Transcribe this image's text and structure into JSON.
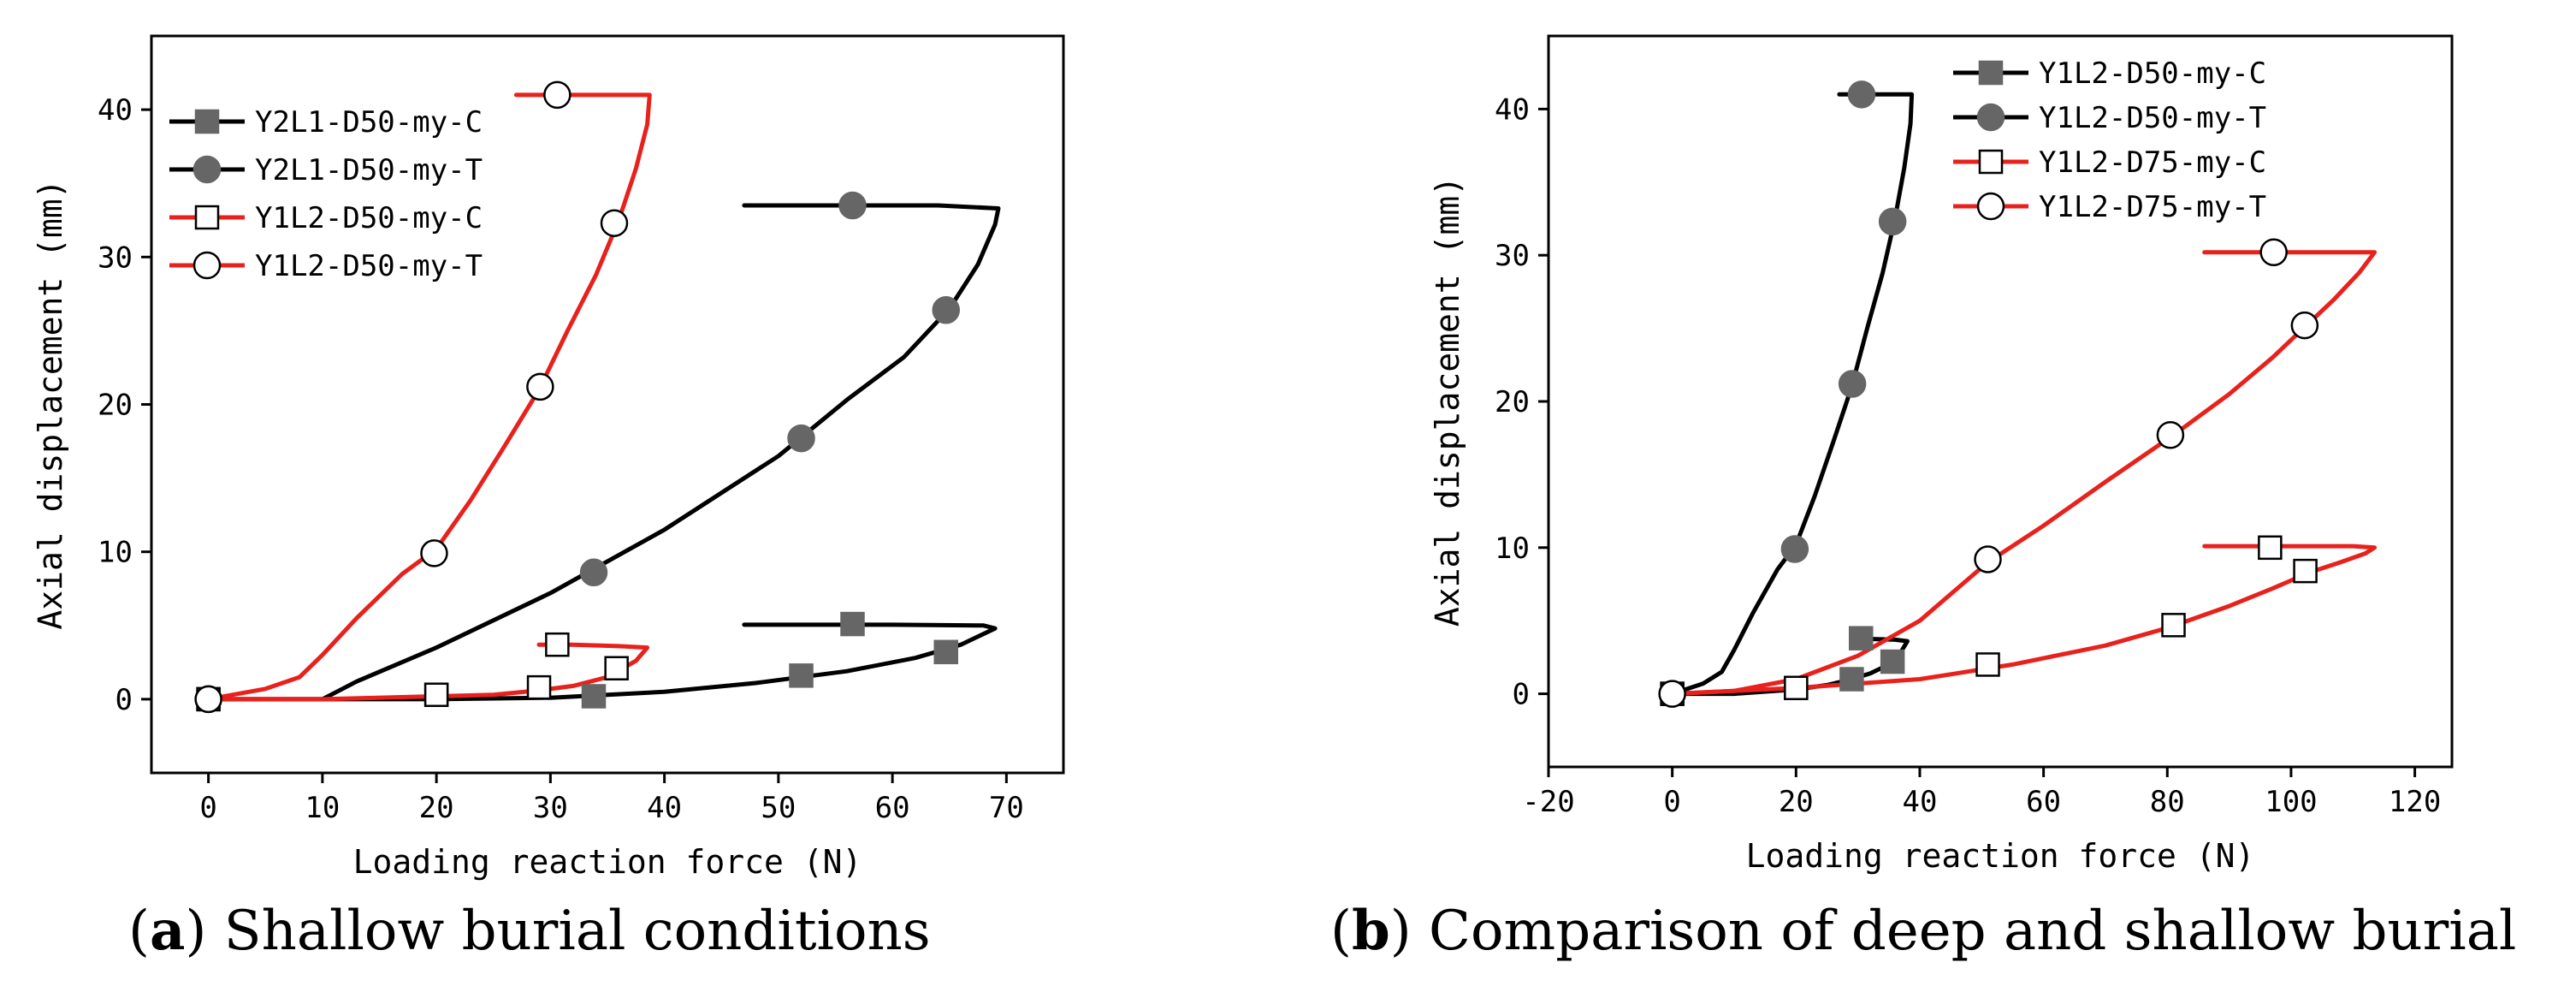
{
  "chart_data": [
    {
      "type": "line",
      "panel": "a",
      "xlabel": "Loading reaction force (N)",
      "ylabel": "Axial displacement (mm)",
      "xlim": [
        -5,
        75
      ],
      "ylim": [
        -5,
        45
      ],
      "xticks": [
        0,
        10,
        20,
        30,
        40,
        50,
        60,
        70
      ],
      "yticks": [
        0,
        10,
        20,
        30,
        40
      ],
      "legend_position": "top-left",
      "caption_label": "a",
      "caption_text": "Shallow burial conditions",
      "series": [
        {
          "name": "Y2L1-D50-my-C",
          "color": "#000000",
          "marker": "square-filled",
          "x": [
            0,
            10,
            20,
            30,
            40,
            48,
            56,
            62,
            66,
            69,
            68,
            60,
            50,
            47
          ],
          "y": [
            0,
            0,
            0,
            0.1,
            0.5,
            1.1,
            1.9,
            2.8,
            3.7,
            4.8,
            5.0,
            5.05,
            5.05,
            5.05
          ],
          "marker_x": [
            0,
            20,
            33.8,
            52,
            64.7,
            56.5
          ],
          "marker_y": [
            0,
            0.3,
            0.2,
            1.6,
            3.2,
            5.1
          ]
        },
        {
          "name": "Y2L1-D50-my-T",
          "color": "#000000",
          "marker": "circle-filled",
          "x": [
            0,
            10,
            13,
            20,
            30,
            40,
            50,
            56,
            61,
            65,
            67.5,
            69,
            69.3,
            64,
            55,
            47
          ],
          "y": [
            0,
            0,
            1.2,
            3.5,
            7.2,
            11.5,
            16.5,
            20.3,
            23.2,
            26.5,
            29.5,
            32.2,
            33.3,
            33.5,
            33.5,
            33.5
          ],
          "marker_x": [
            0,
            33.8,
            52,
            64.7,
            56.5
          ],
          "marker_y": [
            0,
            8.6,
            17.7,
            26.4,
            33.5
          ]
        },
        {
          "name": "Y1L2-D50-my-C",
          "color": "#e8211c",
          "marker": "square-open",
          "x": [
            0,
            10,
            20,
            25,
            29,
            32,
            35,
            37.5,
            38.5,
            36,
            32,
            29
          ],
          "y": [
            0,
            0,
            0.2,
            0.3,
            0.6,
            0.9,
            1.5,
            2.6,
            3.5,
            3.6,
            3.7,
            3.7
          ],
          "marker_x": [
            0,
            20,
            29,
            35.8,
            30.6
          ],
          "marker_y": [
            0,
            0.3,
            0.8,
            2.1,
            3.7
          ]
        },
        {
          "name": "Y1L2-D50-my-T",
          "color": "#e8211c",
          "marker": "circle-open",
          "x": [
            0,
            5,
            8,
            10,
            13,
            17,
            20,
            23,
            26,
            29,
            31.5,
            34,
            36,
            37.5,
            38.5,
            38.7,
            36,
            33,
            27
          ],
          "y": [
            0,
            0.7,
            1.5,
            3.0,
            5.5,
            8.5,
            10.2,
            13.5,
            17.2,
            21.0,
            25.0,
            28.8,
            32.5,
            36.0,
            39.0,
            41.0,
            41.0,
            41.0,
            41.0
          ],
          "marker_x": [
            0,
            19.8,
            29.1,
            35.6,
            30.6
          ],
          "marker_y": [
            0,
            9.9,
            21.2,
            32.3,
            41.0
          ]
        }
      ]
    },
    {
      "type": "line",
      "panel": "b",
      "xlabel": "Loading reaction force (N)",
      "ylabel": "Axial displacement (mm)",
      "xlim": [
        -20,
        126
      ],
      "ylim": [
        -5,
        45
      ],
      "xticks": [
        -20,
        0,
        20,
        40,
        60,
        80,
        100,
        120
      ],
      "yticks": [
        0,
        10,
        20,
        30,
        40
      ],
      "legend_position": "top-right",
      "caption_label": "b",
      "caption_text": "Comparison of deep and shallow burial",
      "series": [
        {
          "name": "Y1L2-D50-my-C",
          "color": "#000000",
          "marker": "square-filled",
          "x": [
            0,
            10,
            20,
            25,
            29,
            32,
            35,
            37,
            38,
            36,
            32,
            29
          ],
          "y": [
            0,
            0,
            0.3,
            0.6,
            1.0,
            1.4,
            2.0,
            2.9,
            3.6,
            3.7,
            3.75,
            3.75
          ],
          "marker_x": [
            0,
            20,
            29,
            35.6,
            30.5
          ],
          "marker_y": [
            0,
            0.4,
            1.0,
            2.2,
            3.8
          ]
        },
        {
          "name": "Y1L2-D50-my-T",
          "color": "#000000",
          "marker": "circle-filled",
          "x": [
            0,
            5,
            8,
            10,
            13,
            17,
            20,
            23,
            26,
            29,
            31.5,
            34,
            36,
            37.5,
            38.5,
            38.7,
            36,
            33,
            27
          ],
          "y": [
            0,
            0.7,
            1.5,
            3.0,
            5.5,
            8.5,
            10.2,
            13.5,
            17.2,
            21.0,
            25.0,
            28.8,
            32.5,
            36.0,
            39.0,
            41.0,
            41.0,
            41.0,
            41.0
          ],
          "marker_x": [
            0,
            19.8,
            29.1,
            35.6,
            30.6
          ],
          "marker_y": [
            0,
            9.9,
            21.2,
            32.3,
            41.0
          ]
        },
        {
          "name": "Y1L2-D75-my-C",
          "color": "#e8211c",
          "marker": "square-open",
          "x": [
            0,
            20,
            40,
            55,
            70,
            80,
            90,
            97,
            103,
            108,
            112,
            113.5,
            110,
            100,
            90,
            86
          ],
          "y": [
            0,
            0.4,
            1.0,
            2.0,
            3.3,
            4.5,
            6.0,
            7.2,
            8.3,
            9.0,
            9.6,
            10.0,
            10.1,
            10.1,
            10.1,
            10.1
          ],
          "marker_x": [
            0,
            20,
            51,
            81,
            102.3,
            96.6
          ],
          "marker_y": [
            0,
            0.4,
            2.0,
            4.7,
            8.4,
            10.0
          ]
        },
        {
          "name": "Y1L2-D75-my-T",
          "color": "#e8211c",
          "marker": "circle-open",
          "x": [
            0,
            10,
            20,
            30,
            40,
            51,
            60,
            70,
            81,
            90,
            97,
            102,
            107,
            111,
            113.5,
            110,
            100,
            90,
            86
          ],
          "y": [
            0,
            0.2,
            1.0,
            2.6,
            5.0,
            9.0,
            11.5,
            14.5,
            17.7,
            20.5,
            23.0,
            25.0,
            27.0,
            28.8,
            30.2,
            30.2,
            30.2,
            30.2,
            30.2
          ],
          "marker_x": [
            0,
            51,
            80.5,
            102.2,
            97.2
          ],
          "marker_y": [
            0,
            9.2,
            17.7,
            25.2,
            30.2
          ]
        }
      ]
    }
  ]
}
